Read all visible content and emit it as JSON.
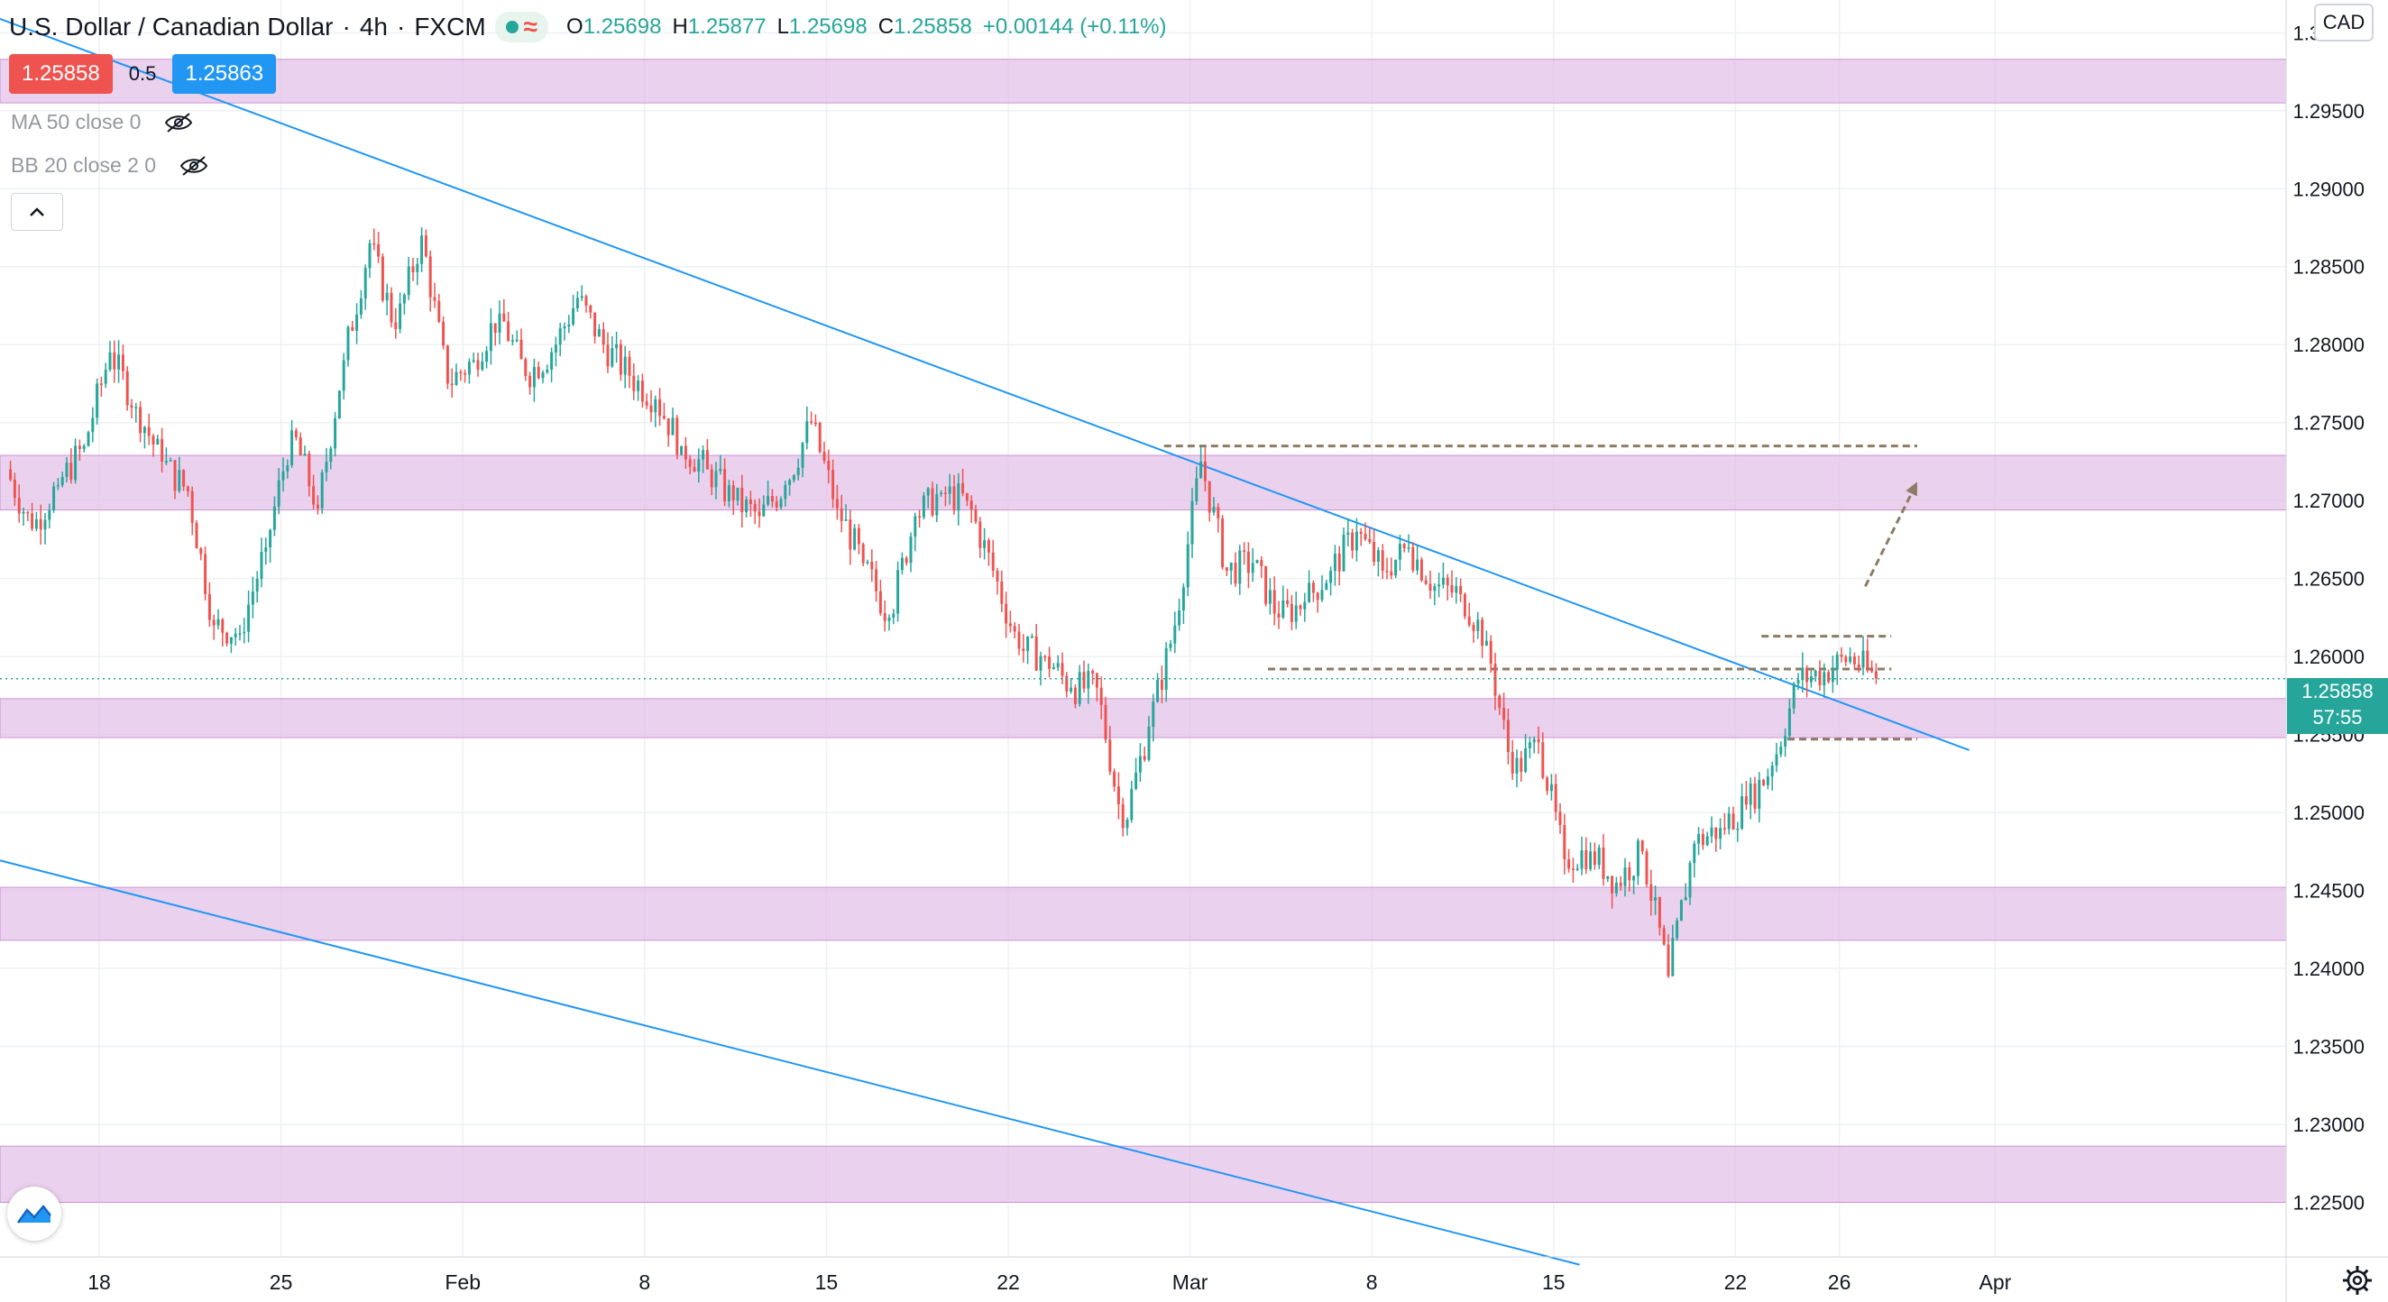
{
  "header": {
    "symbol": "U.S. Dollar / Canadian Dollar",
    "interval": "4h",
    "exchange": "FXCM",
    "ohlc": [
      {
        "key": "O",
        "value": "1.25698"
      },
      {
        "key": "H",
        "value": "1.25877"
      },
      {
        "key": "L",
        "value": "1.25698"
      },
      {
        "key": "C",
        "value": "1.25858"
      },
      {
        "key": "",
        "value": "+0.00144 (+0.11%)"
      }
    ]
  },
  "trade": {
    "sell": "1.25858",
    "spread": "0.5",
    "buy": "1.25863"
  },
  "indicators": [
    {
      "label": "MA 50 close 0",
      "icon": "eye-hidden-icon"
    },
    {
      "label": "BB 20 close 2 0",
      "icon": "eye-hidden-icon"
    }
  ],
  "currency": "CAD",
  "last_price": {
    "price": "1.25858",
    "countdown": "57:55"
  },
  "colors": {
    "up": "#26a69a",
    "down": "#ef5350",
    "zone": "#e1bee7",
    "trendline": "#2196f3",
    "level": "#8d7b64",
    "grid": "#eef0f3",
    "tag": "#26a69a"
  },
  "chart_data": {
    "type": "candlestick",
    "symbol": "USDCAD",
    "timeframe": "4h",
    "x_tick_labels": [
      "18",
      "25",
      "Feb",
      "8",
      "15",
      "22",
      "Mar",
      "8",
      "15",
      "22",
      "26",
      "Apr"
    ],
    "y_tick_labels": [
      "1.30000",
      "1.29500",
      "1.29000",
      "1.28500",
      "1.28000",
      "1.27500",
      "1.27000",
      "1.26500",
      "1.26000",
      "1.25500",
      "1.25000",
      "1.24500",
      "1.24000",
      "1.23500",
      "1.23000",
      "1.22500"
    ],
    "ylim": [
      1.2215,
      1.3021
    ],
    "zones": [
      [
        1.2955,
        1.2983
      ],
      [
        1.2694,
        1.2729
      ],
      [
        1.2548,
        1.2573
      ],
      [
        1.2418,
        1.2452
      ],
      [
        1.225,
        1.2286
      ]
    ],
    "level_lines": [
      {
        "from": "2021-02-28",
        "to": "2021-03-29",
        "price": 1.2735
      },
      {
        "from": "2021-03-04",
        "to": "2021-03-28",
        "price": 1.2592
      },
      {
        "from": "2021-03-23",
        "to": "2021-03-28",
        "price": 1.2613
      },
      {
        "from": "2021-03-24",
        "to": "2021-03-29",
        "price": 1.2547
      }
    ],
    "trendlines": [
      {
        "from": [
          "2021-01-14",
          1.301
        ],
        "to": [
          "2021-03-31",
          1.254
        ]
      },
      {
        "from": [
          "2021-01-14",
          1.247
        ],
        "to": [
          "2021-03-16",
          1.221
        ]
      }
    ],
    "projection_arrow": {
      "from": [
        "2021-03-27",
        1.2645
      ],
      "to": [
        "2021-03-29",
        1.2712
      ]
    },
    "last_price": 1.25858,
    "candles": [
      {
        "t": "2021-01-15",
        "c": 1.2682
      },
      {
        "t": "2021-01-16",
        "c": 1.271
      },
      {
        "t": "2021-01-17",
        "c": 1.2735
      },
      {
        "t": "2021-01-18",
        "c": 1.2795
      },
      {
        "t": "2021-01-19",
        "c": 1.276
      },
      {
        "t": "2021-01-20",
        "c": 1.2725
      },
      {
        "t": "2021-01-21",
        "c": 1.2706
      },
      {
        "t": "2021-01-22",
        "c": 1.262
      },
      {
        "t": "2021-01-23",
        "c": 1.2615
      },
      {
        "t": "2021-01-24",
        "c": 1.267
      },
      {
        "t": "2021-01-25",
        "c": 1.2745
      },
      {
        "t": "2021-01-26",
        "c": 1.2695
      },
      {
        "t": "2021-01-27",
        "c": 1.279
      },
      {
        "t": "2021-01-28",
        "c": 1.2865
      },
      {
        "t": "2021-01-29",
        "c": 1.281
      },
      {
        "t": "2021-01-30",
        "c": 1.287
      },
      {
        "t": "2021-01-31",
        "c": 1.2775
      },
      {
        "t": "2021-02-01",
        "c": 1.279
      },
      {
        "t": "2021-02-02",
        "c": 1.282
      },
      {
        "t": "2021-02-03",
        "c": 1.278
      },
      {
        "t": "2021-02-04",
        "c": 1.2795
      },
      {
        "t": "2021-02-05",
        "c": 1.283
      },
      {
        "t": "2021-02-06",
        "c": 1.28
      },
      {
        "t": "2021-02-07",
        "c": 1.278
      },
      {
        "t": "2021-02-08",
        "c": 1.2765
      },
      {
        "t": "2021-02-09",
        "c": 1.2735
      },
      {
        "t": "2021-02-10",
        "c": 1.272
      },
      {
        "t": "2021-02-11",
        "c": 1.27
      },
      {
        "t": "2021-02-12",
        "c": 1.269
      },
      {
        "t": "2021-02-13",
        "c": 1.271
      },
      {
        "t": "2021-02-14",
        "c": 1.275
      },
      {
        "t": "2021-02-15",
        "c": 1.2695
      },
      {
        "t": "2021-02-16",
        "c": 1.266
      },
      {
        "t": "2021-02-17",
        "c": 1.2625
      },
      {
        "t": "2021-02-18",
        "c": 1.269
      },
      {
        "t": "2021-02-19",
        "c": 1.2705
      },
      {
        "t": "2021-02-20",
        "c": 1.27
      },
      {
        "t": "2021-02-21",
        "c": 1.2655
      },
      {
        "t": "2021-02-22",
        "c": 1.2605
      },
      {
        "t": "2021-02-23",
        "c": 1.26
      },
      {
        "t": "2021-02-24",
        "c": 1.258
      },
      {
        "t": "2021-02-25",
        "c": 1.258
      },
      {
        "t": "2021-02-26",
        "c": 1.249
      },
      {
        "t": "2021-02-27",
        "c": 1.2555
      },
      {
        "t": "2021-02-28",
        "c": 1.262
      },
      {
        "t": "2021-03-01",
        "c": 1.2725
      },
      {
        "t": "2021-03-02",
        "c": 1.2655
      },
      {
        "t": "2021-03-03",
        "c": 1.266
      },
      {
        "t": "2021-03-04",
        "c": 1.2625
      },
      {
        "t": "2021-03-05",
        "c": 1.2635
      },
      {
        "t": "2021-03-06",
        "c": 1.2655
      },
      {
        "t": "2021-03-07",
        "c": 1.268
      },
      {
        "t": "2021-03-08",
        "c": 1.2655
      },
      {
        "t": "2021-03-09",
        "c": 1.267
      },
      {
        "t": "2021-03-10",
        "c": 1.2645
      },
      {
        "t": "2021-03-11",
        "c": 1.264
      },
      {
        "t": "2021-03-12",
        "c": 1.261
      },
      {
        "t": "2021-03-13",
        "c": 1.2525
      },
      {
        "t": "2021-03-14",
        "c": 1.2545
      },
      {
        "t": "2021-03-15",
        "c": 1.247
      },
      {
        "t": "2021-03-16",
        "c": 1.2475
      },
      {
        "t": "2021-03-17",
        "c": 1.2455
      },
      {
        "t": "2021-03-18",
        "c": 1.2475
      },
      {
        "t": "2021-03-19",
        "c": 1.2395
      },
      {
        "t": "2021-03-20",
        "c": 1.248
      },
      {
        "t": "2021-03-21",
        "c": 1.249
      },
      {
        "t": "2021-03-22",
        "c": 1.2505
      },
      {
        "t": "2021-03-23",
        "c": 1.253
      },
      {
        "t": "2021-03-24",
        "c": 1.2585
      },
      {
        "t": "2021-03-25",
        "c": 1.259
      },
      {
        "t": "2021-03-26",
        "c": 1.26
      },
      {
        "t": "2021-03-27",
        "c": 1.2586
      }
    ]
  }
}
